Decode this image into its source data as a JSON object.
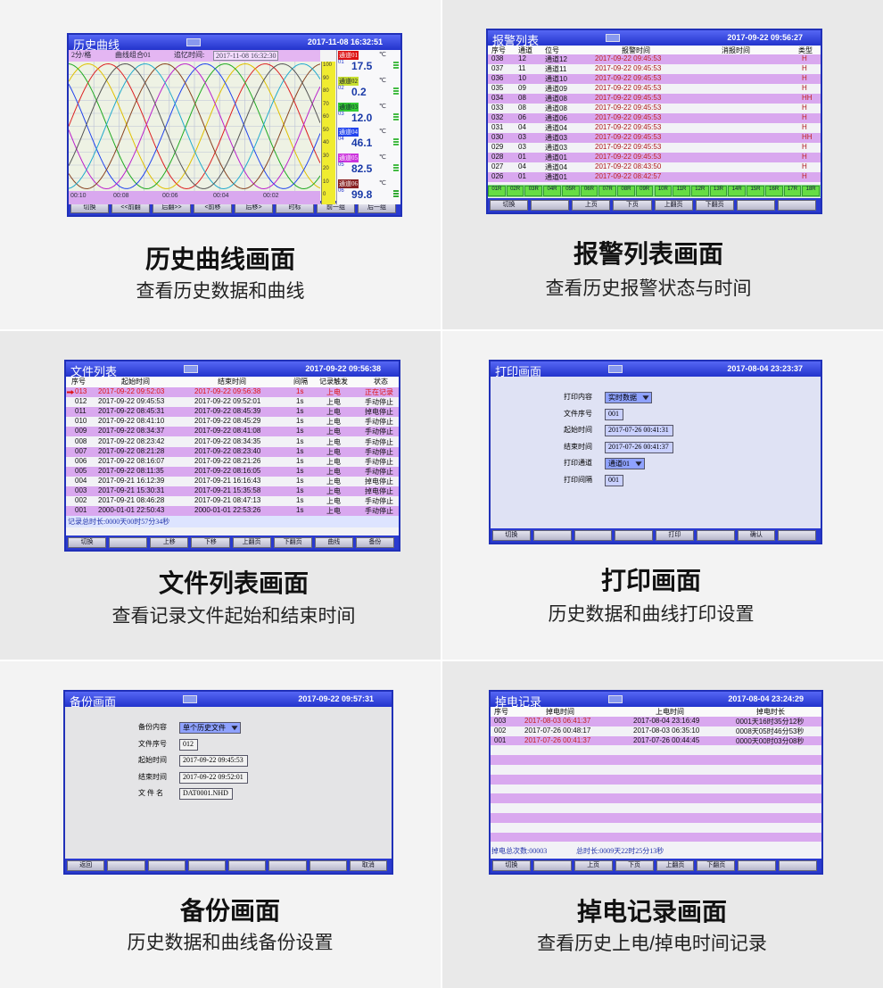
{
  "panels": [
    {
      "caption": "历史曲线画面",
      "description": "查看历史数据和曲线",
      "screen": {
        "title": "历史曲线",
        "datetime": "2017-11-08 16:32:51",
        "info": [
          "2分/格",
          "曲线组合01",
          "追忆时间:"
        ],
        "recall_time": "2017-11-08 16:32:30",
        "scale": [
          "100",
          "90",
          "80",
          "70",
          "60",
          "50",
          "40",
          "30",
          "20",
          "10",
          "0"
        ],
        "time_labels": [
          "00:10",
          "00:08",
          "00:06",
          "00:04",
          "00:02"
        ],
        "channels": [
          {
            "name": "通道01",
            "index": "01",
            "value": "17.5",
            "unit": "℃"
          },
          {
            "name": "通道02",
            "index": "02",
            "value": "0.2",
            "unit": "℃"
          },
          {
            "name": "通道03",
            "index": "03",
            "value": "12.0",
            "unit": "℃"
          },
          {
            "name": "通道04",
            "index": "04",
            "value": "46.1",
            "unit": "℃"
          },
          {
            "name": "通道05",
            "index": "05",
            "value": "82.5",
            "unit": "℃"
          },
          {
            "name": "通道06",
            "index": "06",
            "value": "99.8",
            "unit": "℃"
          }
        ],
        "buttons": [
          "切换",
          "<<前翻",
          "后翻>>",
          "<前移",
          "后移>",
          "时标",
          "前一组",
          "后一组"
        ]
      }
    },
    {
      "caption": "报警列表画面",
      "description": "查看历史报警状态与时间",
      "screen": {
        "title": "报警列表",
        "datetime": "2017-09-22 09:56:27",
        "headers": [
          "序号",
          "通道",
          "位号",
          "报警时间",
          "消报时间",
          "类型"
        ],
        "rows": [
          [
            "038",
            "12",
            "通道12",
            "2017-09-22 09:45:53",
            "H"
          ],
          [
            "037",
            "11",
            "通道11",
            "2017-09-22 09:45:53",
            "H"
          ],
          [
            "036",
            "10",
            "通道10",
            "2017-09-22 09:45:53",
            "H"
          ],
          [
            "035",
            "09",
            "通道09",
            "2017-09-22 09:45:53",
            "H"
          ],
          [
            "034",
            "08",
            "通道08",
            "2017-09-22 09:45:53",
            "HH"
          ],
          [
            "033",
            "08",
            "通道08",
            "2017-09-22 09:45:53",
            "H"
          ],
          [
            "032",
            "06",
            "通道06",
            "2017-09-22 09:45:53",
            "H"
          ],
          [
            "031",
            "04",
            "通道04",
            "2017-09-22 09:45:53",
            "H"
          ],
          [
            "030",
            "03",
            "通道03",
            "2017-09-22 09:45:53",
            "HH"
          ],
          [
            "029",
            "03",
            "通道03",
            "2017-09-22 09:45:53",
            "H"
          ],
          [
            "028",
            "01",
            "通道01",
            "2017-09-22 09:45:53",
            "H"
          ],
          [
            "027",
            "04",
            "通道04",
            "2017-09-22 08:43:50",
            "H"
          ],
          [
            "026",
            "01",
            "通道01",
            "2017-09-22 08:42:57",
            "H"
          ]
        ],
        "status": [
          "01R",
          "02R",
          "03R",
          "04R",
          "05R",
          "06R",
          "07R",
          "08R",
          "09R",
          "10R",
          "11R",
          "12R",
          "13R",
          "14R",
          "15R",
          "16R",
          "17R",
          "18R"
        ],
        "buttons": [
          "切换",
          null,
          "上页",
          "下页",
          "上翻页",
          "下翻页",
          null,
          null
        ]
      }
    },
    {
      "caption": "文件列表画面",
      "description": "查看记录文件起始和结束时间",
      "screen": {
        "title": "文件列表",
        "datetime": "2017-09-22 09:56:38",
        "headers": [
          "序号",
          "起始时间",
          "结束时间",
          "间隔",
          "记录触发",
          "状态"
        ],
        "rows": [
          [
            "013",
            "2017-09-22 09:52:03",
            "2017-09-22 09:56:38",
            "1s",
            "上电",
            "正在记录"
          ],
          [
            "012",
            "2017-09-22 09:45:53",
            "2017-09-22 09:52:01",
            "1s",
            "上电",
            "手动停止"
          ],
          [
            "011",
            "2017-09-22 08:45:31",
            "2017-09-22 08:45:39",
            "1s",
            "上电",
            "掉电停止"
          ],
          [
            "010",
            "2017-09-22 08:41:10",
            "2017-09-22 08:45:29",
            "1s",
            "上电",
            "手动停止"
          ],
          [
            "009",
            "2017-09-22 08:34:37",
            "2017-09-22 08:41:08",
            "1s",
            "上电",
            "手动停止"
          ],
          [
            "008",
            "2017-09-22 08:23:42",
            "2017-09-22 08:34:35",
            "1s",
            "上电",
            "手动停止"
          ],
          [
            "007",
            "2017-09-22 08:21:28",
            "2017-09-22 08:23:40",
            "1s",
            "上电",
            "手动停止"
          ],
          [
            "006",
            "2017-09-22 08:16:07",
            "2017-09-22 08:21:26",
            "1s",
            "上电",
            "手动停止"
          ],
          [
            "005",
            "2017-09-22 08:11:35",
            "2017-09-22 08:16:05",
            "1s",
            "上电",
            "手动停止"
          ],
          [
            "004",
            "2017-09-21 16:12:39",
            "2017-09-21 16:16:43",
            "1s",
            "上电",
            "掉电停止"
          ],
          [
            "003",
            "2017-09-21 15:30:31",
            "2017-09-21 15:35:58",
            "1s",
            "上电",
            "掉电停止"
          ],
          [
            "002",
            "2017-09-21 08:46:28",
            "2017-09-21 08:47:13",
            "1s",
            "上电",
            "手动停止"
          ],
          [
            "001",
            "2000-01-01 22:50:43",
            "2000-01-01 22:53:26",
            "1s",
            "上电",
            "手动停止"
          ]
        ],
        "footer": [
          "记录总时长:0000天00时57分34秒"
        ],
        "buttons": [
          "切换",
          null,
          "上移",
          "下移",
          "上翻页",
          "下翻页",
          "曲线",
          "备份"
        ]
      }
    },
    {
      "caption": "打印画面",
      "description": "历史数据和曲线打印设置",
      "screen": {
        "title": "打印画面",
        "datetime": "2017-08-04 23:23:37",
        "fields": [
          {
            "label": "打印内容",
            "value": "实时数据",
            "dropdown": true
          },
          {
            "label": "文件序号",
            "value": "001"
          },
          {
            "label": "起始时间",
            "value": "2017-07-26 00:41:31"
          },
          {
            "label": "结束时间",
            "value": "2017-07-26 00:41:37"
          },
          {
            "label": "打印通道",
            "value": "通道01",
            "dropdown": true
          },
          {
            "label": "打印间隔",
            "value": "001"
          }
        ],
        "buttons": [
          "切换",
          null,
          null,
          null,
          "打印",
          null,
          "确认",
          null
        ]
      }
    },
    {
      "caption": "备份画面",
      "description": "历史数据和曲线备份设置",
      "screen": {
        "title": "备份画面",
        "datetime": "2017-09-22 09:57:31",
        "fields": [
          {
            "label": "备份内容",
            "value": "单个历史文件",
            "dropdown": true
          },
          {
            "label": "文件序号",
            "value": "012"
          },
          {
            "label": "起始时间",
            "value": "2017-09-22 09:45:53"
          },
          {
            "label": "结束时间",
            "value": "2017-09-22 09:52:01"
          },
          {
            "label": "文 件 名",
            "value": "DAT0001.NHD"
          }
        ],
        "buttons": [
          "返回",
          null,
          null,
          null,
          null,
          null,
          null,
          "取消"
        ]
      }
    },
    {
      "caption": "掉电记录画面",
      "description": "查看历史上电/掉电时间记录",
      "screen": {
        "title": "掉电记录",
        "datetime": "2017-08-04 23:24:29",
        "headers": [
          "序号",
          "掉电时间",
          "上电时间",
          "掉电时长"
        ],
        "rows": [
          [
            "003",
            "2017-08-03 06:41:37",
            "2017-08-04 23:16:49",
            "0001天16时35分12秒"
          ],
          [
            "002",
            "2017-07-26 00:48:17",
            "2017-08-03 06:35:10",
            "0008天05时46分53秒"
          ],
          [
            "001",
            "2017-07-26 00:41:37",
            "2017-07-26 00:44:45",
            "0000天00时03分08秒"
          ]
        ],
        "footer": [
          "掉电总次数:00003",
          "总时长:0009天22时25分13秒"
        ],
        "buttons": [
          "切换",
          null,
          "上页",
          "下页",
          "上翻页",
          "下翻页",
          null,
          null
        ]
      }
    }
  ]
}
